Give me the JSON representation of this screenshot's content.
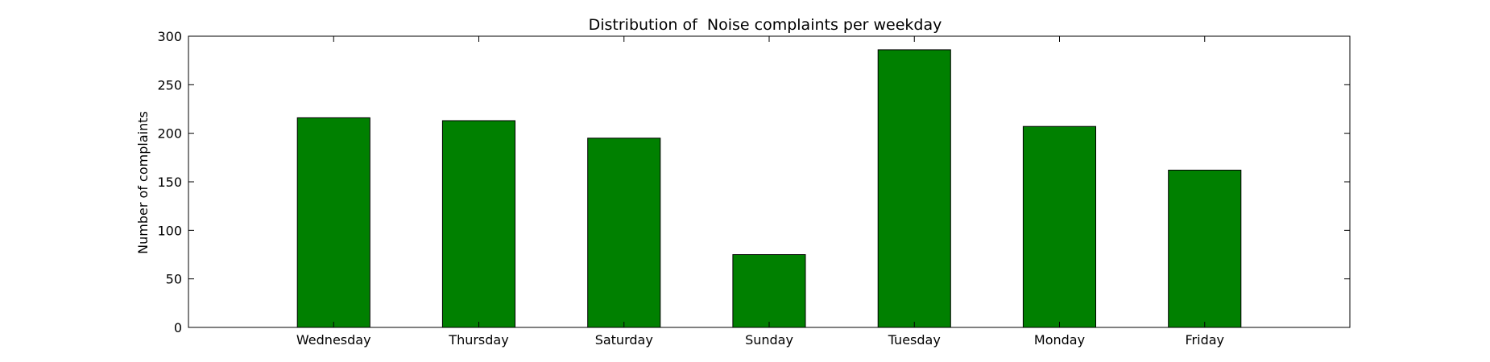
{
  "chart_data": {
    "type": "bar",
    "title": "Distribution of  Noise complaints per weekday",
    "xlabel": "",
    "ylabel": "Number of complaints",
    "categories": [
      "Wednesday",
      "Thursday",
      "Saturday",
      "Sunday",
      "Tuesday",
      "Monday",
      "Friday"
    ],
    "values": [
      216,
      213,
      195,
      75,
      286,
      207,
      162
    ],
    "ylim": [
      0,
      300
    ],
    "yticks": [
      0,
      50,
      100,
      150,
      200,
      250,
      300
    ],
    "grid": false,
    "legend": "none",
    "colors": {
      "bar": "#008000",
      "bar_edge": "#000000",
      "axes": "#000000",
      "background": "#ffffff"
    }
  }
}
